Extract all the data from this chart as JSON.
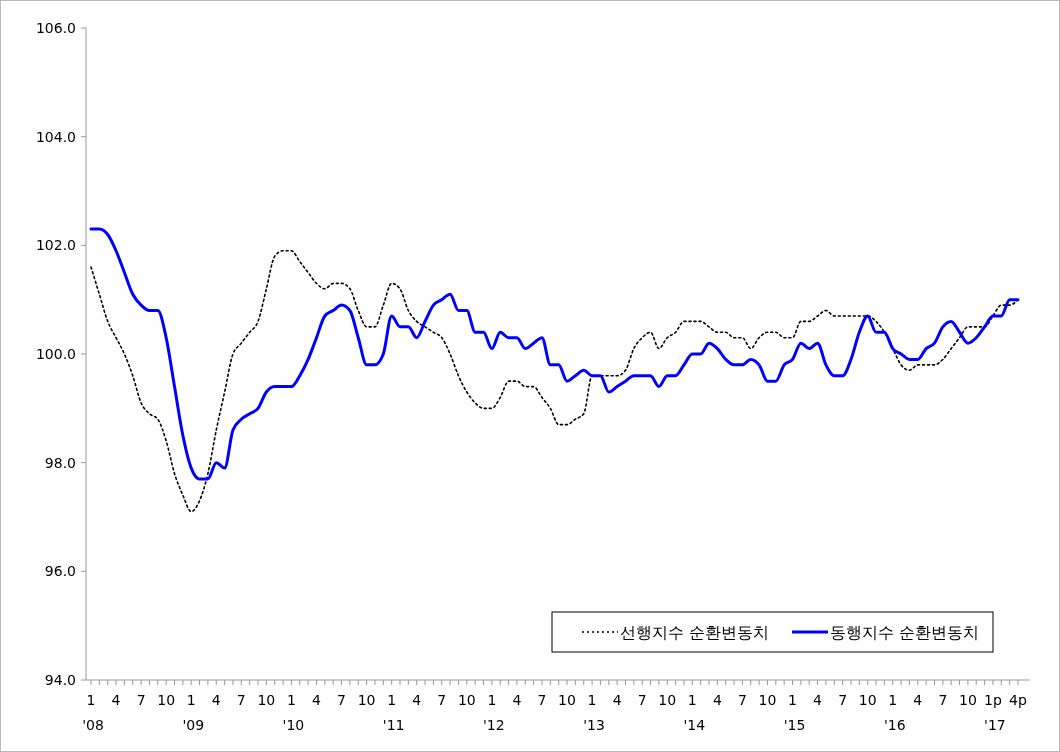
{
  "chart_data": {
    "type": "line",
    "categories": [
      "1\n'08",
      null,
      null,
      "4",
      null,
      null,
      "7",
      null,
      null,
      "10",
      null,
      null,
      "1\n'09",
      null,
      null,
      "4",
      null,
      null,
      "7",
      null,
      null,
      "10",
      null,
      null,
      "1\n'10",
      null,
      null,
      "4",
      null,
      null,
      "7",
      null,
      null,
      "10",
      null,
      null,
      "1\n'11",
      null,
      null,
      "4",
      null,
      null,
      "7",
      null,
      null,
      "10",
      null,
      null,
      "1\n'12",
      null,
      null,
      "4",
      null,
      null,
      "7",
      null,
      null,
      "10",
      null,
      null,
      "1\n'13",
      null,
      null,
      "4",
      null,
      null,
      "7",
      null,
      null,
      "10",
      null,
      null,
      "1\n'14",
      null,
      null,
      "4",
      null,
      null,
      "7",
      null,
      null,
      "10",
      null,
      null,
      "1\n'15",
      null,
      null,
      "4",
      null,
      null,
      "7",
      null,
      null,
      "10",
      null,
      null,
      "1\n'16",
      null,
      null,
      "4",
      null,
      null,
      "7",
      null,
      null,
      "10",
      null,
      null,
      "1p\n'17",
      null,
      null,
      "4p"
    ],
    "series": [
      {
        "name": "선행지수 순환변동치",
        "color": "#000000",
        "line_style": "dotted",
        "values": [
          101.6,
          101.1,
          100.6,
          100.3,
          100.0,
          99.6,
          99.1,
          98.9,
          98.8,
          98.4,
          97.8,
          97.4,
          97.1,
          97.3,
          97.8,
          98.6,
          99.3,
          100.0,
          100.2,
          100.4,
          100.6,
          101.2,
          101.8,
          101.9,
          101.9,
          101.7,
          101.5,
          101.3,
          101.2,
          101.3,
          101.3,
          101.2,
          100.8,
          100.5,
          100.5,
          100.9,
          101.3,
          101.2,
          100.8,
          100.6,
          100.5,
          100.4,
          100.3,
          100.0,
          99.6,
          99.3,
          99.1,
          99.0,
          99.0,
          99.2,
          99.5,
          99.5,
          99.4,
          99.4,
          99.2,
          99.0,
          98.7,
          98.7,
          98.8,
          98.9,
          99.6,
          99.6,
          99.6,
          99.6,
          99.7,
          100.1,
          100.3,
          100.4,
          100.1,
          100.3,
          100.4,
          100.6,
          100.6,
          100.6,
          100.5,
          100.4,
          100.4,
          100.3,
          100.3,
          100.1,
          100.3,
          100.4,
          100.4,
          100.3,
          100.3,
          100.6,
          100.6,
          100.7,
          100.8,
          100.7,
          100.7,
          100.7,
          100.7,
          100.7,
          100.6,
          100.4,
          100.1,
          99.8,
          99.7,
          99.8,
          99.8,
          99.8,
          99.9,
          100.1,
          100.3,
          100.5,
          100.5,
          100.5,
          100.7,
          100.9,
          100.9,
          101.0
        ]
      },
      {
        "name": "동행지수 순환변동치",
        "color": "#0000ff",
        "line_style": "solid",
        "values": [
          102.3,
          102.3,
          102.2,
          101.9,
          101.5,
          101.1,
          100.9,
          100.8,
          100.8,
          100.3,
          99.4,
          98.5,
          97.9,
          97.7,
          97.7,
          98.0,
          97.9,
          98.6,
          98.8,
          98.9,
          99.0,
          99.3,
          99.4,
          99.4,
          99.4,
          99.6,
          99.9,
          100.3,
          100.7,
          100.8,
          100.9,
          100.8,
          100.3,
          99.8,
          99.8,
          100.0,
          100.7,
          100.5,
          100.5,
          100.3,
          100.6,
          100.9,
          101.0,
          101.1,
          100.8,
          100.8,
          100.4,
          100.4,
          100.1,
          100.4,
          100.3,
          100.3,
          100.1,
          100.2,
          100.3,
          99.8,
          99.8,
          99.5,
          99.6,
          99.7,
          99.6,
          99.6,
          99.3,
          99.4,
          99.5,
          99.6,
          99.6,
          99.6,
          99.4,
          99.6,
          99.6,
          99.8,
          100.0,
          100.0,
          100.2,
          100.1,
          99.9,
          99.8,
          99.8,
          99.9,
          99.8,
          99.5,
          99.5,
          99.8,
          99.9,
          100.2,
          100.1,
          100.2,
          99.8,
          99.6,
          99.6,
          99.9,
          100.4,
          100.7,
          100.4,
          100.4,
          100.1,
          100.0,
          99.9,
          99.9,
          100.1,
          100.2,
          100.5,
          100.6,
          100.4,
          100.2,
          100.3,
          100.5,
          100.7,
          100.7,
          101.0,
          101.0
        ]
      }
    ],
    "ylim": [
      94,
      106
    ],
    "yticks": [
      {
        "value": 94,
        "label": "94.0"
      },
      {
        "value": 96,
        "label": "96.0"
      },
      {
        "value": 98,
        "label": "98.0"
      },
      {
        "value": 100,
        "label": "100.0"
      },
      {
        "value": 102,
        "label": "102.0"
      },
      {
        "value": 104,
        "label": "104.0"
      },
      {
        "value": 106,
        "label": "106.0"
      }
    ],
    "legend": "bottom right",
    "marker": "none"
  }
}
